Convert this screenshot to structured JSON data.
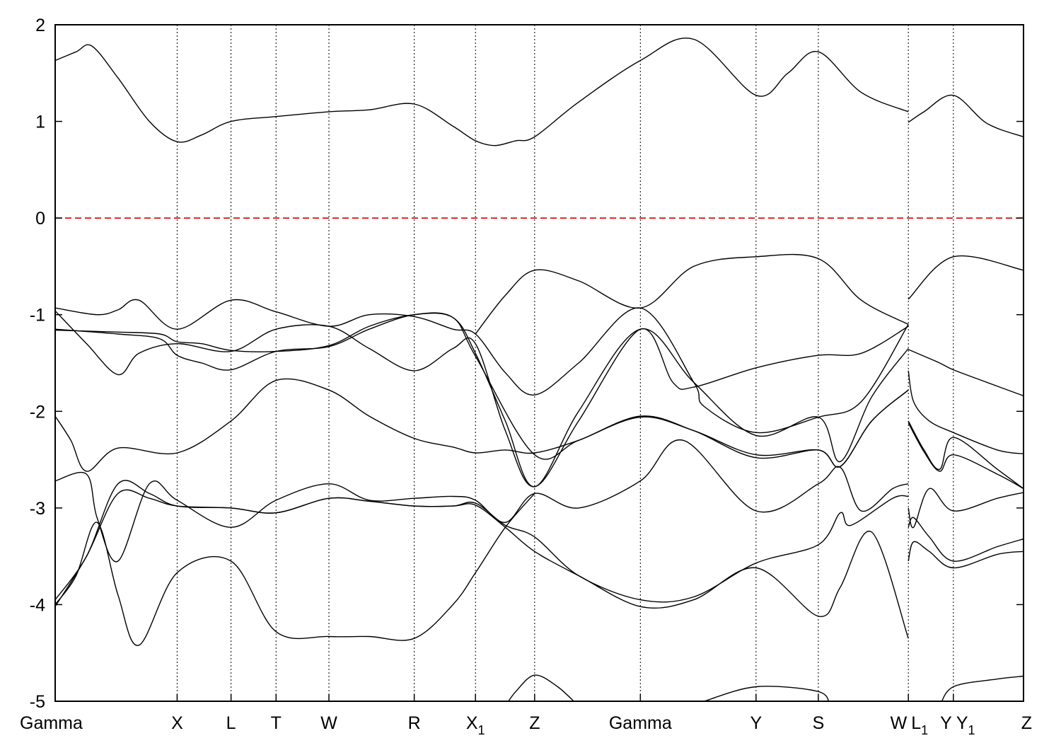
{
  "chart_data": {
    "type": "line",
    "title": "",
    "xlabel": "",
    "ylabel": "",
    "ylim": [
      -5,
      2
    ],
    "xlim": [
      0,
      9.25
    ],
    "grid": false,
    "legend": "none",
    "y_ticks": [
      {
        "value": 2,
        "label": "2"
      },
      {
        "value": 1,
        "label": "1"
      },
      {
        "value": 0,
        "label": "0"
      },
      {
        "value": -1,
        "label": "-1"
      },
      {
        "value": -2,
        "label": "-2"
      },
      {
        "value": -3,
        "label": "-3"
      },
      {
        "value": -4,
        "label": "-4"
      },
      {
        "value": -5,
        "label": "-5"
      }
    ],
    "kpoints": [
      {
        "label": "Gamma",
        "sub": "",
        "x": 0.0
      },
      {
        "label": "X",
        "sub": "",
        "x": 1.165
      },
      {
        "label": "L",
        "sub": "",
        "x": 1.68
      },
      {
        "label": "T",
        "sub": "",
        "x": 2.11
      },
      {
        "label": "W",
        "sub": "",
        "x": 2.615
      },
      {
        "label": "R",
        "sub": "",
        "x": 3.43
      },
      {
        "label": "X",
        "sub": "1",
        "x": 4.015
      },
      {
        "label": "Z",
        "sub": "",
        "x": 4.58
      },
      {
        "label": "Gamma",
        "sub": "",
        "x": 5.59
      },
      {
        "label": "Y",
        "sub": "",
        "x": 6.695
      },
      {
        "label": "S",
        "sub": "",
        "x": 7.29
      },
      {
        "label": "W",
        "sub": "",
        "x": 8.15
      },
      {
        "label": "L",
        "sub": "1",
        "x": 8.15
      },
      {
        "label": "Y",
        "sub": "",
        "x": 8.58
      },
      {
        "label": "Y",
        "sub": "1",
        "x": 8.58
      },
      {
        "label": "Z",
        "sub": "",
        "x": 9.25
      }
    ],
    "fermi_level": 0,
    "series": [
      {
        "x": [
          0,
          0.2,
          0.35,
          0.6,
          0.9,
          1.165,
          1.4,
          1.68,
          2.11,
          2.615,
          3.0,
          3.43,
          3.8,
          4.015,
          4.2,
          4.4,
          4.58,
          5.0,
          5.59,
          6.1,
          6.695,
          7.0,
          7.29,
          7.7,
          8.15
        ],
        "y": [
          1.63,
          1.72,
          1.78,
          1.45,
          1.0,
          0.79,
          0.86,
          1.0,
          1.05,
          1.1,
          1.12,
          1.18,
          0.95,
          0.8,
          0.75,
          0.8,
          0.84,
          1.2,
          1.63,
          1.85,
          1.27,
          1.5,
          1.72,
          1.3,
          1.1
        ]
      },
      {
        "x": [
          8.15,
          8.3,
          8.58,
          8.9,
          9.25
        ],
        "y": [
          0.99,
          1.1,
          1.27,
          0.98,
          0.84
        ]
      },
      {
        "x": [
          4.015,
          4.3,
          4.58,
          5.0,
          5.59,
          6.1,
          6.695,
          7.29,
          7.7,
          8.15
        ],
        "y": [
          -1.2,
          -0.8,
          -0.54,
          -0.65,
          -0.93,
          -0.5,
          -0.4,
          -0.42,
          -0.85,
          -1.1
        ]
      },
      {
        "x": [
          8.15,
          8.58,
          9.25
        ],
        "y": [
          -0.84,
          -0.4,
          -0.54
        ]
      },
      {
        "x": [
          0,
          0.4,
          0.6,
          0.8,
          1.165,
          1.68,
          2.11,
          2.615,
          3.0,
          3.43,
          3.8,
          4.015,
          4.3,
          4.58,
          5.0,
          5.59,
          6.1,
          6.2,
          6.695,
          7.29,
          7.7,
          8.15
        ],
        "y": [
          -0.93,
          -1.0,
          -0.95,
          -0.85,
          -1.15,
          -0.85,
          -0.97,
          -1.12,
          -1.0,
          -1.02,
          -1.15,
          -1.2,
          -1.6,
          -1.83,
          -1.5,
          -0.93,
          -1.7,
          -1.95,
          -2.22,
          -2.06,
          -1.9,
          -1.1
        ]
      },
      {
        "x": [
          0,
          0.3,
          0.6,
          0.8,
          1.165,
          1.68,
          2.11,
          2.615,
          3.0,
          3.43,
          3.8,
          4.015,
          4.3,
          4.58,
          5.0,
          5.59,
          5.9,
          6.1,
          6.695,
          7.29,
          7.7,
          8.15
        ],
        "y": [
          -0.96,
          -1.3,
          -1.62,
          -1.4,
          -1.3,
          -1.38,
          -1.15,
          -1.12,
          -1.35,
          -1.58,
          -1.35,
          -1.3,
          -2.2,
          -2.78,
          -2.1,
          -1.15,
          -1.7,
          -1.75,
          -1.55,
          -1.42,
          -1.4,
          -1.12
        ]
      },
      {
        "x": [
          0,
          0.6,
          1.0,
          1.165,
          1.4,
          1.68,
          2.11,
          2.615,
          3.0,
          3.43,
          3.8,
          4.015,
          4.3,
          4.58,
          5.0,
          5.59,
          6.1,
          6.695,
          7.29,
          7.5,
          7.8,
          8.15
        ],
        "y": [
          -1.16,
          -1.18,
          -1.2,
          -1.28,
          -1.3,
          -1.37,
          -1.38,
          -1.32,
          -1.12,
          -1.0,
          -1.03,
          -1.4,
          -2.1,
          -2.78,
          -2.0,
          -1.15,
          -1.7,
          -2.25,
          -2.06,
          -2.52,
          -1.85,
          -1.35
        ]
      },
      {
        "x": [
          0,
          0.6,
          1.0,
          1.165,
          1.4,
          1.68,
          2.11,
          2.615,
          3.0,
          3.43,
          3.8,
          4.015,
          4.58,
          5.0,
          5.59,
          6.1,
          6.695,
          7.29,
          7.5,
          7.8,
          8.15
        ],
        "y": [
          -1.15,
          -1.2,
          -1.25,
          -1.42,
          -1.5,
          -1.57,
          -1.38,
          -1.33,
          -1.15,
          -1.0,
          -1.03,
          -1.43,
          -2.45,
          -2.3,
          -2.06,
          -2.2,
          -2.45,
          -2.4,
          -2.57,
          -2.1,
          -1.78
        ]
      },
      {
        "x": [
          0,
          0.15,
          0.3,
          0.6,
          1.165,
          1.68,
          2.11,
          2.615,
          3.0,
          3.43,
          3.8,
          4.015,
          4.3,
          4.58,
          5.0,
          5.59,
          6.1,
          6.695,
          7.29,
          7.5,
          7.8,
          8.15
        ],
        "y": [
          -2.05,
          -2.3,
          -2.62,
          -2.38,
          -2.43,
          -2.1,
          -1.68,
          -1.78,
          -2.05,
          -2.28,
          -2.37,
          -2.43,
          -2.4,
          -2.43,
          -2.3,
          -2.05,
          -2.2,
          -2.48,
          -2.4,
          -2.57,
          -2.1,
          -1.78
        ]
      },
      {
        "x": [
          0,
          0.3,
          0.4,
          0.6,
          0.9,
          1.165,
          1.68,
          2.11,
          2.615,
          3.0,
          3.43,
          3.8,
          4.015,
          4.3,
          4.58,
          5.0,
          5.59,
          6.0,
          6.695,
          7.29,
          7.5,
          7.7,
          8.0,
          8.15
        ],
        "y": [
          -2.72,
          -2.65,
          -3.1,
          -3.55,
          -2.75,
          -2.92,
          -3.2,
          -2.92,
          -2.75,
          -2.92,
          -2.9,
          -2.88,
          -2.92,
          -3.15,
          -2.85,
          -3.0,
          -2.72,
          -2.3,
          -3.03,
          -2.75,
          -2.58,
          -3.03,
          -2.8,
          -2.75
        ]
      },
      {
        "x": [
          0,
          0.3,
          0.6,
          0.9,
          1.165,
          1.68,
          2.11,
          2.615,
          3.0,
          3.43,
          3.8,
          4.015,
          4.3,
          4.58,
          5.0,
          5.59,
          6.1,
          6.695,
          7.29,
          7.5,
          7.6,
          8.0,
          8.15
        ],
        "y": [
          -3.95,
          -3.5,
          -2.75,
          -2.85,
          -2.98,
          -3.0,
          -3.05,
          -2.9,
          -2.93,
          -2.98,
          -2.98,
          -2.95,
          -3.18,
          -3.3,
          -3.7,
          -3.95,
          -3.92,
          -3.57,
          -3.38,
          -3.05,
          -3.18,
          -2.9,
          -2.88
        ]
      },
      {
        "x": [
          0,
          0.3,
          0.6,
          0.9,
          1.165,
          1.68,
          2.11,
          2.615,
          3.0,
          3.43,
          3.8,
          4.015,
          4.3,
          4.58,
          5.0,
          5.59,
          6.1,
          6.695,
          7.29,
          7.5,
          7.8,
          8.15
        ],
        "y": [
          -4.02,
          -3.5,
          -2.85,
          -2.9,
          -2.98,
          -3.0,
          -3.05,
          -2.9,
          -2.93,
          -2.98,
          -2.98,
          -2.97,
          -3.2,
          -3.45,
          -3.7,
          -4.02,
          -3.95,
          -3.62,
          -4.12,
          -3.82,
          -3.25,
          -4.35
        ]
      },
      {
        "x": [
          0,
          0.2,
          0.4,
          0.6,
          0.8,
          1.165,
          1.68,
          2.11,
          2.615,
          3.0,
          3.43,
          3.8,
          4.015,
          4.3,
          4.58
        ],
        "y": [
          -4.0,
          -3.7,
          -3.15,
          -3.9,
          -4.42,
          -3.67,
          -3.55,
          -4.28,
          -4.33,
          -4.33,
          -4.35,
          -4.0,
          -3.67,
          -3.2,
          -2.85
        ]
      },
      {
        "x": [
          8.15,
          8.2,
          8.35,
          8.58,
          9.0,
          9.25
        ],
        "y": [
          -1.58,
          -1.9,
          -2.1,
          -2.22,
          -2.4,
          -2.44
        ]
      },
      {
        "x": [
          8.15,
          8.3,
          8.45,
          8.58,
          8.9,
          9.25
        ],
        "y": [
          -1.36,
          -1.43,
          -1.5,
          -1.57,
          -1.7,
          -1.84
        ]
      },
      {
        "x": [
          8.15,
          8.3,
          8.45,
          8.58,
          9.0,
          9.25
        ],
        "y": [
          -2.1,
          -2.4,
          -2.6,
          -2.27,
          -2.6,
          -2.8
        ]
      },
      {
        "x": [
          8.15,
          8.3,
          8.45,
          8.58,
          9.0,
          9.25
        ],
        "y": [
          -2.12,
          -2.42,
          -2.62,
          -2.45,
          -2.65,
          -2.8
        ]
      },
      {
        "x": [
          8.15,
          8.2,
          8.35,
          8.58,
          9.0,
          9.25
        ],
        "y": [
          -3.0,
          -3.2,
          -2.8,
          -3.03,
          -2.9,
          -2.84
        ]
      },
      {
        "x": [
          8.15,
          8.2,
          8.35,
          8.58,
          9.0,
          9.25
        ],
        "y": [
          -3.2,
          -3.1,
          -3.3,
          -3.55,
          -3.4,
          -3.32
        ]
      },
      {
        "x": [
          8.15,
          8.2,
          8.35,
          8.58,
          9.0,
          9.25
        ],
        "y": [
          -3.55,
          -3.35,
          -3.45,
          -3.62,
          -3.48,
          -3.45
        ]
      },
      {
        "x": [
          4.3,
          4.4,
          4.58,
          4.8,
          5.0
        ],
        "y": [
          -5.05,
          -4.9,
          -4.73,
          -4.85,
          -5.05
        ]
      },
      {
        "x": [
          6.2,
          6.695,
          7.29,
          7.4
        ],
        "y": [
          -5.0,
          -4.85,
          -4.9,
          -5.05
        ]
      },
      {
        "x": [
          8.45,
          8.58,
          9.0,
          9.25
        ],
        "y": [
          -5.05,
          -4.85,
          -4.77,
          -4.74
        ]
      }
    ]
  }
}
